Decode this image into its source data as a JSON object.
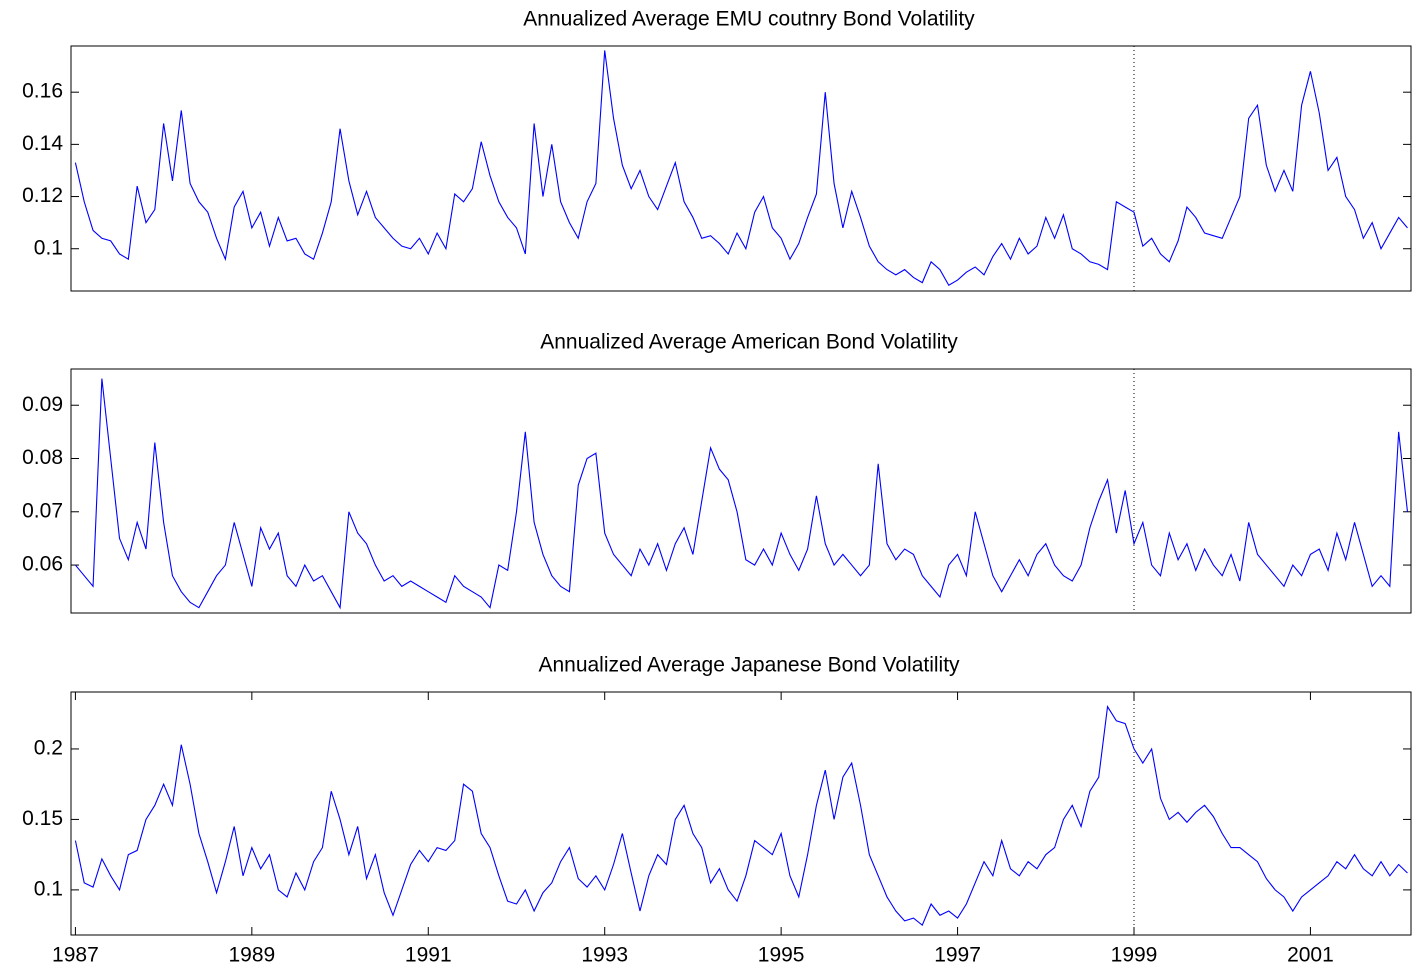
{
  "chart_data": [
    {
      "type": "line",
      "title": "Annualized Average EMU coutnry Bond Volatility",
      "x": [
        1987,
        1987.1,
        1987.2,
        1987.3,
        1987.4,
        1987.5,
        1987.6,
        1987.7,
        1987.8,
        1987.9,
        1988,
        1988.1,
        1988.2,
        1988.3,
        1988.4,
        1988.5,
        1988.6,
        1988.7,
        1988.8,
        1988.9,
        1989,
        1989.1,
        1989.2,
        1989.3,
        1989.4,
        1989.5,
        1989.6,
        1989.7,
        1989.8,
        1989.9,
        1990,
        1990.1,
        1990.2,
        1990.3,
        1990.4,
        1990.5,
        1990.6,
        1990.7,
        1990.8,
        1990.9,
        1991,
        1991.1,
        1991.2,
        1991.3,
        1991.4,
        1991.5,
        1991.6,
        1991.7,
        1991.8,
        1991.9,
        1992,
        1992.1,
        1992.2,
        1992.3,
        1992.4,
        1992.5,
        1992.6,
        1992.7,
        1992.8,
        1992.9,
        1993,
        1993.1,
        1993.2,
        1993.3,
        1993.4,
        1993.5,
        1993.6,
        1993.7,
        1993.8,
        1993.9,
        1994,
        1994.1,
        1994.2,
        1994.3,
        1994.4,
        1994.5,
        1994.6,
        1994.7,
        1994.8,
        1994.9,
        1995,
        1995.1,
        1995.2,
        1995.3,
        1995.4,
        1995.5,
        1995.6,
        1995.7,
        1995.8,
        1995.9,
        1996,
        1996.1,
        1996.2,
        1996.3,
        1996.4,
        1996.5,
        1996.6,
        1996.7,
        1996.8,
        1996.9,
        1997,
        1997.1,
        1997.2,
        1997.3,
        1997.4,
        1997.5,
        1997.6,
        1997.7,
        1997.8,
        1997.9,
        1998,
        1998.1,
        1998.2,
        1998.3,
        1998.4,
        1998.5,
        1998.6,
        1998.7,
        1998.8,
        1998.9,
        1999,
        1999.1,
        1999.2,
        1999.3,
        1999.4,
        1999.5,
        1999.6,
        1999.7,
        1999.8,
        1999.9,
        2000,
        2000.1,
        2000.2,
        2000.3,
        2000.4,
        2000.5,
        2000.6,
        2000.7,
        2000.8,
        2000.9,
        2001,
        2001.1,
        2001.2,
        2001.3,
        2001.4,
        2001.5,
        2001.6,
        2001.7,
        2001.8,
        2001.9,
        2002,
        2002.1
      ],
      "series": [
        {
          "color": "#0000ff",
          "values": [
            0.133,
            0.118,
            0.107,
            0.104,
            0.103,
            0.098,
            0.096,
            0.124,
            0.11,
            0.115,
            0.148,
            0.126,
            0.153,
            0.125,
            0.118,
            0.114,
            0.104,
            0.096,
            0.116,
            0.122,
            0.108,
            0.114,
            0.101,
            0.112,
            0.103,
            0.104,
            0.098,
            0.096,
            0.106,
            0.118,
            0.146,
            0.126,
            0.113,
            0.122,
            0.112,
            0.108,
            0.104,
            0.101,
            0.1,
            0.104,
            0.098,
            0.106,
            0.1,
            0.121,
            0.118,
            0.123,
            0.141,
            0.128,
            0.118,
            0.112,
            0.108,
            0.098,
            0.148,
            0.12,
            0.14,
            0.118,
            0.11,
            0.104,
            0.118,
            0.125,
            0.176,
            0.15,
            0.132,
            0.123,
            0.13,
            0.12,
            0.115,
            0.124,
            0.133,
            0.118,
            0.112,
            0.104,
            0.105,
            0.102,
            0.098,
            0.106,
            0.1,
            0.114,
            0.12,
            0.108,
            0.104,
            0.096,
            0.102,
            0.112,
            0.121,
            0.16,
            0.125,
            0.108,
            0.122,
            0.112,
            0.101,
            0.095,
            0.092,
            0.09,
            0.092,
            0.089,
            0.087,
            0.095,
            0.092,
            0.086,
            0.088,
            0.091,
            0.093,
            0.09,
            0.097,
            0.102,
            0.096,
            0.104,
            0.098,
            0.101,
            0.112,
            0.104,
            0.113,
            0.1,
            0.098,
            0.095,
            0.094,
            0.092,
            0.118,
            0.116,
            0.114,
            0.101,
            0.104,
            0.098,
            0.095,
            0.103,
            0.116,
            0.112,
            0.106,
            0.105,
            0.104,
            0.112,
            0.12,
            0.15,
            0.155,
            0.132,
            0.122,
            0.13,
            0.122,
            0.155,
            0.168,
            0.152,
            0.13,
            0.135,
            0.12,
            0.115,
            0.104,
            0.11,
            0.1,
            0.106,
            0.112,
            0.108
          ]
        }
      ],
      "xlim": [
        1986.95,
        2002.14
      ],
      "ylim": [
        0.0838,
        0.1777
      ],
      "yticks": [
        0.1,
        0.12,
        0.14,
        0.16
      ],
      "vline": 1999
    },
    {
      "type": "line",
      "title": "Annualized Average American Bond Volatility",
      "x": [
        1987,
        1987.1,
        1987.2,
        1987.3,
        1987.4,
        1987.5,
        1987.6,
        1987.7,
        1987.8,
        1987.9,
        1988,
        1988.1,
        1988.2,
        1988.3,
        1988.4,
        1988.5,
        1988.6,
        1988.7,
        1988.8,
        1988.9,
        1989,
        1989.1,
        1989.2,
        1989.3,
        1989.4,
        1989.5,
        1989.6,
        1989.7,
        1989.8,
        1989.9,
        1990,
        1990.1,
        1990.2,
        1990.3,
        1990.4,
        1990.5,
        1990.6,
        1990.7,
        1990.8,
        1990.9,
        1991,
        1991.1,
        1991.2,
        1991.3,
        1991.4,
        1991.5,
        1991.6,
        1991.7,
        1991.8,
        1991.9,
        1992,
        1992.1,
        1992.2,
        1992.3,
        1992.4,
        1992.5,
        1992.6,
        1992.7,
        1992.8,
        1992.9,
        1993,
        1993.1,
        1993.2,
        1993.3,
        1993.4,
        1993.5,
        1993.6,
        1993.7,
        1993.8,
        1993.9,
        1994,
        1994.1,
        1994.2,
        1994.3,
        1994.4,
        1994.5,
        1994.6,
        1994.7,
        1994.8,
        1994.9,
        1995,
        1995.1,
        1995.2,
        1995.3,
        1995.4,
        1995.5,
        1995.6,
        1995.7,
        1995.8,
        1995.9,
        1996,
        1996.1,
        1996.2,
        1996.3,
        1996.4,
        1996.5,
        1996.6,
        1996.7,
        1996.8,
        1996.9,
        1997,
        1997.1,
        1997.2,
        1997.3,
        1997.4,
        1997.5,
        1997.6,
        1997.7,
        1997.8,
        1997.9,
        1998,
        1998.1,
        1998.2,
        1998.3,
        1998.4,
        1998.5,
        1998.6,
        1998.7,
        1998.8,
        1998.9,
        1999,
        1999.1,
        1999.2,
        1999.3,
        1999.4,
        1999.5,
        1999.6,
        1999.7,
        1999.8,
        1999.9,
        2000,
        2000.1,
        2000.2,
        2000.3,
        2000.4,
        2000.5,
        2000.6,
        2000.7,
        2000.8,
        2000.9,
        2001,
        2001.1,
        2001.2,
        2001.3,
        2001.4,
        2001.5,
        2001.6,
        2001.7,
        2001.8,
        2001.9,
        2002,
        2002.1
      ],
      "series": [
        {
          "color": "#0000ff",
          "values": [
            0.06,
            0.058,
            0.056,
            0.095,
            0.08,
            0.065,
            0.061,
            0.068,
            0.063,
            0.083,
            0.068,
            0.058,
            0.055,
            0.053,
            0.052,
            0.055,
            0.058,
            0.06,
            0.068,
            0.062,
            0.056,
            0.067,
            0.063,
            0.066,
            0.058,
            0.056,
            0.06,
            0.057,
            0.058,
            0.055,
            0.052,
            0.07,
            0.066,
            0.064,
            0.06,
            0.057,
            0.058,
            0.056,
            0.057,
            0.056,
            0.055,
            0.054,
            0.053,
            0.058,
            0.056,
            0.055,
            0.054,
            0.052,
            0.06,
            0.059,
            0.07,
            0.085,
            0.068,
            0.062,
            0.058,
            0.056,
            0.055,
            0.075,
            0.08,
            0.081,
            0.066,
            0.062,
            0.06,
            0.058,
            0.063,
            0.06,
            0.064,
            0.059,
            0.064,
            0.067,
            0.062,
            0.072,
            0.082,
            0.078,
            0.076,
            0.07,
            0.061,
            0.06,
            0.063,
            0.06,
            0.066,
            0.062,
            0.059,
            0.063,
            0.073,
            0.064,
            0.06,
            0.062,
            0.06,
            0.058,
            0.06,
            0.079,
            0.064,
            0.061,
            0.063,
            0.062,
            0.058,
            0.056,
            0.054,
            0.06,
            0.062,
            0.058,
            0.07,
            0.064,
            0.058,
            0.055,
            0.058,
            0.061,
            0.058,
            0.062,
            0.064,
            0.06,
            0.058,
            0.057,
            0.06,
            0.067,
            0.072,
            0.076,
            0.066,
            0.074,
            0.064,
            0.068,
            0.06,
            0.058,
            0.066,
            0.061,
            0.064,
            0.059,
            0.063,
            0.06,
            0.058,
            0.062,
            0.057,
            0.068,
            0.062,
            0.06,
            0.058,
            0.056,
            0.06,
            0.058,
            0.062,
            0.063,
            0.059,
            0.066,
            0.061,
            0.068,
            0.062,
            0.056,
            0.058,
            0.056,
            0.085,
            0.07
          ]
        }
      ],
      "xlim": [
        1986.95,
        2002.14
      ],
      "ylim": [
        0.051,
        0.0968
      ],
      "yticks": [
        0.06,
        0.07,
        0.08,
        0.09
      ],
      "vline": 1999
    },
    {
      "type": "line",
      "title": "Annualized Average Japanese Bond Volatility",
      "x": [
        1987,
        1987.1,
        1987.2,
        1987.3,
        1987.4,
        1987.5,
        1987.6,
        1987.7,
        1987.8,
        1987.9,
        1988,
        1988.1,
        1988.2,
        1988.3,
        1988.4,
        1988.5,
        1988.6,
        1988.7,
        1988.8,
        1988.9,
        1989,
        1989.1,
        1989.2,
        1989.3,
        1989.4,
        1989.5,
        1989.6,
        1989.7,
        1989.8,
        1989.9,
        1990,
        1990.1,
        1990.2,
        1990.3,
        1990.4,
        1990.5,
        1990.6,
        1990.7,
        1990.8,
        1990.9,
        1991,
        1991.1,
        1991.2,
        1991.3,
        1991.4,
        1991.5,
        1991.6,
        1991.7,
        1991.8,
        1991.9,
        1992,
        1992.1,
        1992.2,
        1992.3,
        1992.4,
        1992.5,
        1992.6,
        1992.7,
        1992.8,
        1992.9,
        1993,
        1993.1,
        1993.2,
        1993.3,
        1993.4,
        1993.5,
        1993.6,
        1993.7,
        1993.8,
        1993.9,
        1994,
        1994.1,
        1994.2,
        1994.3,
        1994.4,
        1994.5,
        1994.6,
        1994.7,
        1994.8,
        1994.9,
        1995,
        1995.1,
        1995.2,
        1995.3,
        1995.4,
        1995.5,
        1995.6,
        1995.7,
        1995.8,
        1995.9,
        1996,
        1996.1,
        1996.2,
        1996.3,
        1996.4,
        1996.5,
        1996.6,
        1996.7,
        1996.8,
        1996.9,
        1997,
        1997.1,
        1997.2,
        1997.3,
        1997.4,
        1997.5,
        1997.6,
        1997.7,
        1997.8,
        1997.9,
        1998,
        1998.1,
        1998.2,
        1998.3,
        1998.4,
        1998.5,
        1998.6,
        1998.7,
        1998.8,
        1998.9,
        1999,
        1999.1,
        1999.2,
        1999.3,
        1999.4,
        1999.5,
        1999.6,
        1999.7,
        1999.8,
        1999.9,
        2000,
        2000.1,
        2000.2,
        2000.3,
        2000.4,
        2000.5,
        2000.6,
        2000.7,
        2000.8,
        2000.9,
        2001,
        2001.1,
        2001.2,
        2001.3,
        2001.4,
        2001.5,
        2001.6,
        2001.7,
        2001.8,
        2001.9,
        2002,
        2002.1
      ],
      "series": [
        {
          "color": "#0000ff",
          "values": [
            0.135,
            0.105,
            0.102,
            0.122,
            0.11,
            0.1,
            0.125,
            0.128,
            0.15,
            0.16,
            0.175,
            0.16,
            0.203,
            0.175,
            0.14,
            0.12,
            0.098,
            0.12,
            0.145,
            0.11,
            0.13,
            0.115,
            0.125,
            0.1,
            0.095,
            0.112,
            0.1,
            0.12,
            0.13,
            0.17,
            0.15,
            0.125,
            0.145,
            0.108,
            0.125,
            0.098,
            0.082,
            0.1,
            0.118,
            0.128,
            0.12,
            0.13,
            0.128,
            0.135,
            0.175,
            0.17,
            0.14,
            0.13,
            0.11,
            0.092,
            0.09,
            0.1,
            0.085,
            0.098,
            0.105,
            0.12,
            0.13,
            0.108,
            0.102,
            0.11,
            0.1,
            0.118,
            0.14,
            0.112,
            0.085,
            0.11,
            0.125,
            0.118,
            0.15,
            0.16,
            0.14,
            0.13,
            0.105,
            0.115,
            0.1,
            0.092,
            0.11,
            0.135,
            0.13,
            0.125,
            0.14,
            0.11,
            0.095,
            0.125,
            0.16,
            0.185,
            0.15,
            0.18,
            0.19,
            0.16,
            0.125,
            0.11,
            0.095,
            0.085,
            0.078,
            0.08,
            0.075,
            0.09,
            0.082,
            0.085,
            0.08,
            0.09,
            0.105,
            0.12,
            0.11,
            0.135,
            0.115,
            0.11,
            0.12,
            0.115,
            0.125,
            0.13,
            0.15,
            0.16,
            0.145,
            0.17,
            0.18,
            0.23,
            0.22,
            0.218,
            0.2,
            0.19,
            0.2,
            0.165,
            0.15,
            0.155,
            0.148,
            0.155,
            0.16,
            0.152,
            0.14,
            0.13,
            0.13,
            0.125,
            0.12,
            0.108,
            0.1,
            0.095,
            0.085,
            0.095,
            0.1,
            0.105,
            0.11,
            0.12,
            0.115,
            0.125,
            0.115,
            0.11,
            0.12,
            0.11,
            0.118,
            0.112
          ]
        }
      ],
      "xlim": [
        1986.95,
        2002.14
      ],
      "ylim": [
        0.068,
        0.2404
      ],
      "yticks": [
        0.1,
        0.15,
        0.2
      ],
      "xticks": [
        1987,
        1989,
        1991,
        1993,
        1995,
        1997,
        1999,
        2001
      ],
      "vline": 1999
    }
  ]
}
